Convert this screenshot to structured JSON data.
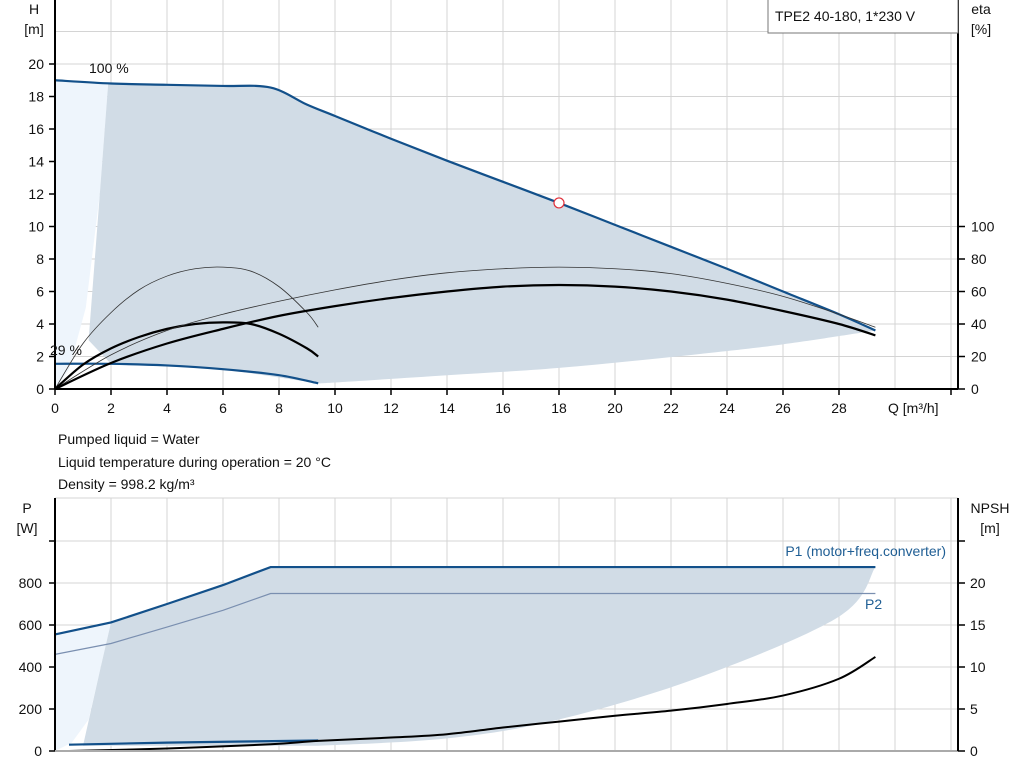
{
  "chart_data": [
    {
      "type": "line",
      "title": "TPE2 40-180, 1*230 V",
      "xlabel": "Q [m³/h]",
      "ylabel": "H\n[m]",
      "y2label": "eta\n[%]",
      "ylabel_lines": [
        "H",
        "[m]"
      ],
      "y2label_lines": [
        "eta",
        "[%]"
      ],
      "xlim": [
        0,
        32
      ],
      "ylim": [
        0,
        24
      ],
      "y2lim": [
        0,
        240
      ],
      "x_ticks": [
        0,
        2,
        4,
        6,
        8,
        10,
        12,
        14,
        16,
        18,
        20,
        22,
        24,
        26,
        28
      ],
      "y_ticks": [
        0,
        2,
        4,
        6,
        8,
        10,
        12,
        14,
        16,
        18,
        20
      ],
      "y2_ticks": [
        0,
        20,
        40,
        60,
        80,
        100
      ],
      "grid": true,
      "annotations": [
        {
          "text": "100 %",
          "note": "max speed curve"
        },
        {
          "text": "29 %",
          "note": "min speed curve"
        }
      ],
      "duty_point": {
        "x": 18,
        "y": 11.45
      },
      "series": [
        {
          "role": "H max speed (100 %)",
          "color": "#12508a",
          "points": [
            [
              0,
              19.0
            ],
            [
              2,
              18.8
            ],
            [
              4,
              18.72
            ],
            [
              6,
              18.65
            ],
            [
              7.7,
              18.55
            ],
            [
              9,
              17.5
            ],
            [
              10,
              16.8
            ],
            [
              12,
              15.4
            ],
            [
              14,
              14.05
            ],
            [
              16,
              12.75
            ],
            [
              18,
              11.45
            ],
            [
              20,
              10.1
            ],
            [
              22,
              8.75
            ],
            [
              24,
              7.4
            ],
            [
              26,
              6.0
            ],
            [
              28,
              4.6
            ],
            [
              29.3,
              3.6
            ]
          ]
        },
        {
          "role": "H min speed (29 %)",
          "color": "#12508a",
          "points": [
            [
              0,
              1.55
            ],
            [
              2,
              1.55
            ],
            [
              4,
              1.45
            ],
            [
              6,
              1.22
            ],
            [
              8,
              0.85
            ],
            [
              9.4,
              0.35
            ]
          ]
        },
        {
          "role": "eta min speed (thin)",
          "color": "#333333",
          "points": [
            [
              0,
              0
            ],
            [
              1,
              28
            ],
            [
              2,
              47
            ],
            [
              3,
              61
            ],
            [
              4,
              69.5
            ],
            [
              5,
              74
            ],
            [
              6,
              75
            ],
            [
              7,
              72.5
            ],
            [
              8,
              63
            ],
            [
              9,
              47
            ],
            [
              9.4,
              38
            ]
          ]
        },
        {
          "role": "eta min speed (thick)",
          "color": "#000000",
          "points": [
            [
              0,
              0
            ],
            [
              1,
              15
            ],
            [
              2,
              25
            ],
            [
              3,
              32
            ],
            [
              4,
              37
            ],
            [
              5,
              40
            ],
            [
              6,
              41
            ],
            [
              7,
              40
            ],
            [
              8,
              34
            ],
            [
              9,
              25
            ],
            [
              9.4,
              20
            ]
          ]
        },
        {
          "role": "eta max speed (thin)",
          "color": "#333333",
          "points": [
            [
              0,
              0
            ],
            [
              2,
              21
            ],
            [
              4,
              36
            ],
            [
              6,
              46
            ],
            [
              8,
              54
            ],
            [
              10,
              61
            ],
            [
              12,
              67
            ],
            [
              14,
              71.5
            ],
            [
              16,
              74
            ],
            [
              18,
              75
            ],
            [
              20,
              74
            ],
            [
              22,
              71
            ],
            [
              24,
              65
            ],
            [
              26,
              57
            ],
            [
              28,
              46
            ],
            [
              29.3,
              38
            ]
          ]
        },
        {
          "role": "eta max speed (thick)",
          "color": "#000000",
          "points": [
            [
              0,
              0
            ],
            [
              2,
              16
            ],
            [
              4,
              28
            ],
            [
              6,
              37
            ],
            [
              8,
              45
            ],
            [
              10,
              51
            ],
            [
              12,
              56
            ],
            [
              14,
              60
            ],
            [
              16,
              63
            ],
            [
              18,
              64
            ],
            [
              20,
              63
            ],
            [
              22,
              60
            ],
            [
              24,
              55
            ],
            [
              26,
              48
            ],
            [
              28,
              40
            ],
            [
              29.3,
              33
            ]
          ]
        }
      ]
    },
    {
      "type": "line",
      "xlabel": "",
      "ylabel_lines": [
        "P",
        "[W]"
      ],
      "y2label_lines": [
        "NPSH",
        "[m]"
      ],
      "xlim": [
        0,
        32
      ],
      "ylim": [
        0,
        1200
      ],
      "y2lim": [
        0,
        30
      ],
      "y_ticks": [
        0,
        200,
        400,
        600,
        800
      ],
      "y2_ticks": [
        0,
        5,
        10,
        15,
        20
      ],
      "grid": true,
      "series": [
        {
          "name": "P1 (motor+freq.converter)",
          "color": "#12508a",
          "points": [
            [
              0,
              555
            ],
            [
              2,
              612
            ],
            [
              4,
              700
            ],
            [
              6,
              790
            ],
            [
              7.7,
              876
            ],
            [
              29.3,
              876
            ]
          ]
        },
        {
          "name": "P2",
          "color": "#7a8fb0",
          "points": [
            [
              0,
              460
            ],
            [
              2,
              512
            ],
            [
              4,
              590
            ],
            [
              6,
              670
            ],
            [
              7.7,
              750
            ],
            [
              29.3,
              750
            ]
          ]
        },
        {
          "role": "P1 min speed",
          "color": "#12508a",
          "points": [
            [
              0.5,
              30
            ],
            [
              4,
              40
            ],
            [
              9.4,
              50
            ]
          ]
        },
        {
          "role": "NPSH",
          "color": "#000000",
          "axis": "y2",
          "points": [
            [
              0.5,
              0
            ],
            [
              4,
              0.3
            ],
            [
              7.7,
              0.8
            ],
            [
              9.4,
              1.2
            ],
            [
              12,
              1.6
            ],
            [
              14,
              2.0
            ],
            [
              16,
              2.8
            ],
            [
              18,
              3.5
            ],
            [
              20,
              4.2
            ],
            [
              22,
              4.8
            ],
            [
              24,
              5.6
            ],
            [
              26,
              6.6
            ],
            [
              28,
              8.6
            ],
            [
              29.3,
              11.2
            ]
          ]
        }
      ]
    }
  ],
  "info": {
    "liquid": "Pumped liquid = Water",
    "temperature": "Liquid temperature during operation = 20 °C",
    "density": "Density = 998.2 kg/m³"
  },
  "colors": {
    "curve": "#12508a",
    "fill": "#d1dce6",
    "fill_light": "#eef5fc",
    "grid": "#d4d4d4"
  }
}
